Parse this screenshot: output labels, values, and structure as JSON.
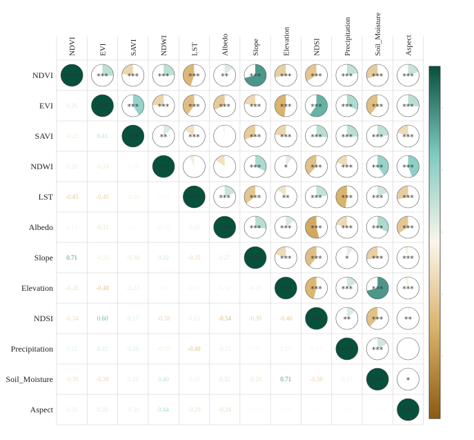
{
  "chart_data": {
    "type": "heatmap",
    "subtype": "correlation-matrix-pie",
    "title": "",
    "variables": [
      "NDVI",
      "EVI",
      "SAVI",
      "NDWI",
      "LST",
      "Albedo",
      "Slope",
      "Elevation",
      "NDSI",
      "Precipitation",
      "Soil_Moisture",
      "Aspect"
    ],
    "lower_triangle_values": [
      [
        null
      ],
      [
        "0.26",
        null
      ],
      [
        "-0.23",
        "0.41",
        null
      ],
      [
        "0.25",
        "-0.24",
        "0.13",
        null
      ],
      [
        "-0.45",
        "-0.40",
        "-0.16",
        "-0.07",
        null
      ],
      [
        "0.13",
        "-0.31",
        "-0.03",
        "-0.15",
        "0.19",
        null
      ],
      [
        "0.71",
        "-0.22",
        "-0.30",
        "0.32",
        "-0.35",
        "0.27",
        null
      ],
      [
        "-0.28",
        "-0.48",
        "-0.23",
        "0.10",
        "-0.13",
        "0.14",
        "-0.20",
        null
      ],
      [
        "-0.34",
        "0.60",
        "0.27",
        "-0.38",
        "0.23",
        "-0.54",
        "-0.39",
        "-0.46",
        null
      ],
      [
        "0.22",
        "0.31",
        "0.26",
        "-0.19",
        "-0.48",
        "-0.21",
        "0.09",
        "0.17",
        "0.13",
        null
      ],
      [
        "-0.30",
        "-0.39",
        "0.24",
        "0.40",
        "0.18",
        "0.32",
        "-0.28",
        "0.71",
        "-0.38",
        "0.17",
        null
      ],
      [
        "0.20",
        "0.26",
        "-0.20",
        "0.44",
        "-0.29",
        "-0.34",
        "-0.05",
        "-0.05",
        "0.02",
        "0.01",
        "0.01",
        null
      ]
    ],
    "upper_triangle_significance": [
      [
        null,
        "***",
        "***",
        "***",
        "***",
        "**",
        "***",
        "***",
        "***",
        "***",
        "***",
        "***"
      ],
      [
        null,
        null,
        "***",
        "***",
        "***",
        "***",
        "***",
        "***",
        "***",
        "***",
        "***",
        "***"
      ],
      [
        null,
        null,
        null,
        "**",
        "***",
        "",
        "***",
        "***",
        "***",
        "***",
        "***",
        "***"
      ],
      [
        null,
        null,
        null,
        null,
        "",
        "",
        "***",
        "*",
        "***",
        "***",
        "***",
        "***"
      ],
      [
        null,
        null,
        null,
        null,
        null,
        "***",
        "***",
        "**",
        "***",
        "***",
        "***",
        "***"
      ],
      [
        null,
        null,
        null,
        null,
        null,
        null,
        "***",
        "***",
        "***",
        "***",
        "***",
        "***"
      ],
      [
        null,
        null,
        null,
        null,
        null,
        null,
        null,
        "***",
        "***",
        "*",
        "***",
        "***"
      ],
      [
        null,
        null,
        null,
        null,
        null,
        null,
        null,
        null,
        "***",
        "***",
        "***",
        "***"
      ],
      [
        null,
        null,
        null,
        null,
        null,
        null,
        null,
        null,
        null,
        "**",
        "***",
        "**"
      ],
      [
        null,
        null,
        null,
        null,
        null,
        null,
        null,
        null,
        null,
        null,
        "***",
        ""
      ],
      [
        null,
        null,
        null,
        null,
        null,
        null,
        null,
        null,
        null,
        null,
        null,
        "*"
      ],
      [
        null,
        null,
        null,
        null,
        null,
        null,
        null,
        null,
        null,
        null,
        null,
        null
      ]
    ],
    "diagonal_significance": "***",
    "colorbar": {
      "range": [
        -1,
        1
      ],
      "ticks_shown": false
    },
    "colors": {
      "neg_strong": "#8c5a12",
      "neg_mid": "#d9b069",
      "neutral": "#fbf6ea",
      "pos_mid": "#7fcac2",
      "pos_strong": "#07503c",
      "grid": "#dcdcdc",
      "text": "#222222"
    }
  }
}
